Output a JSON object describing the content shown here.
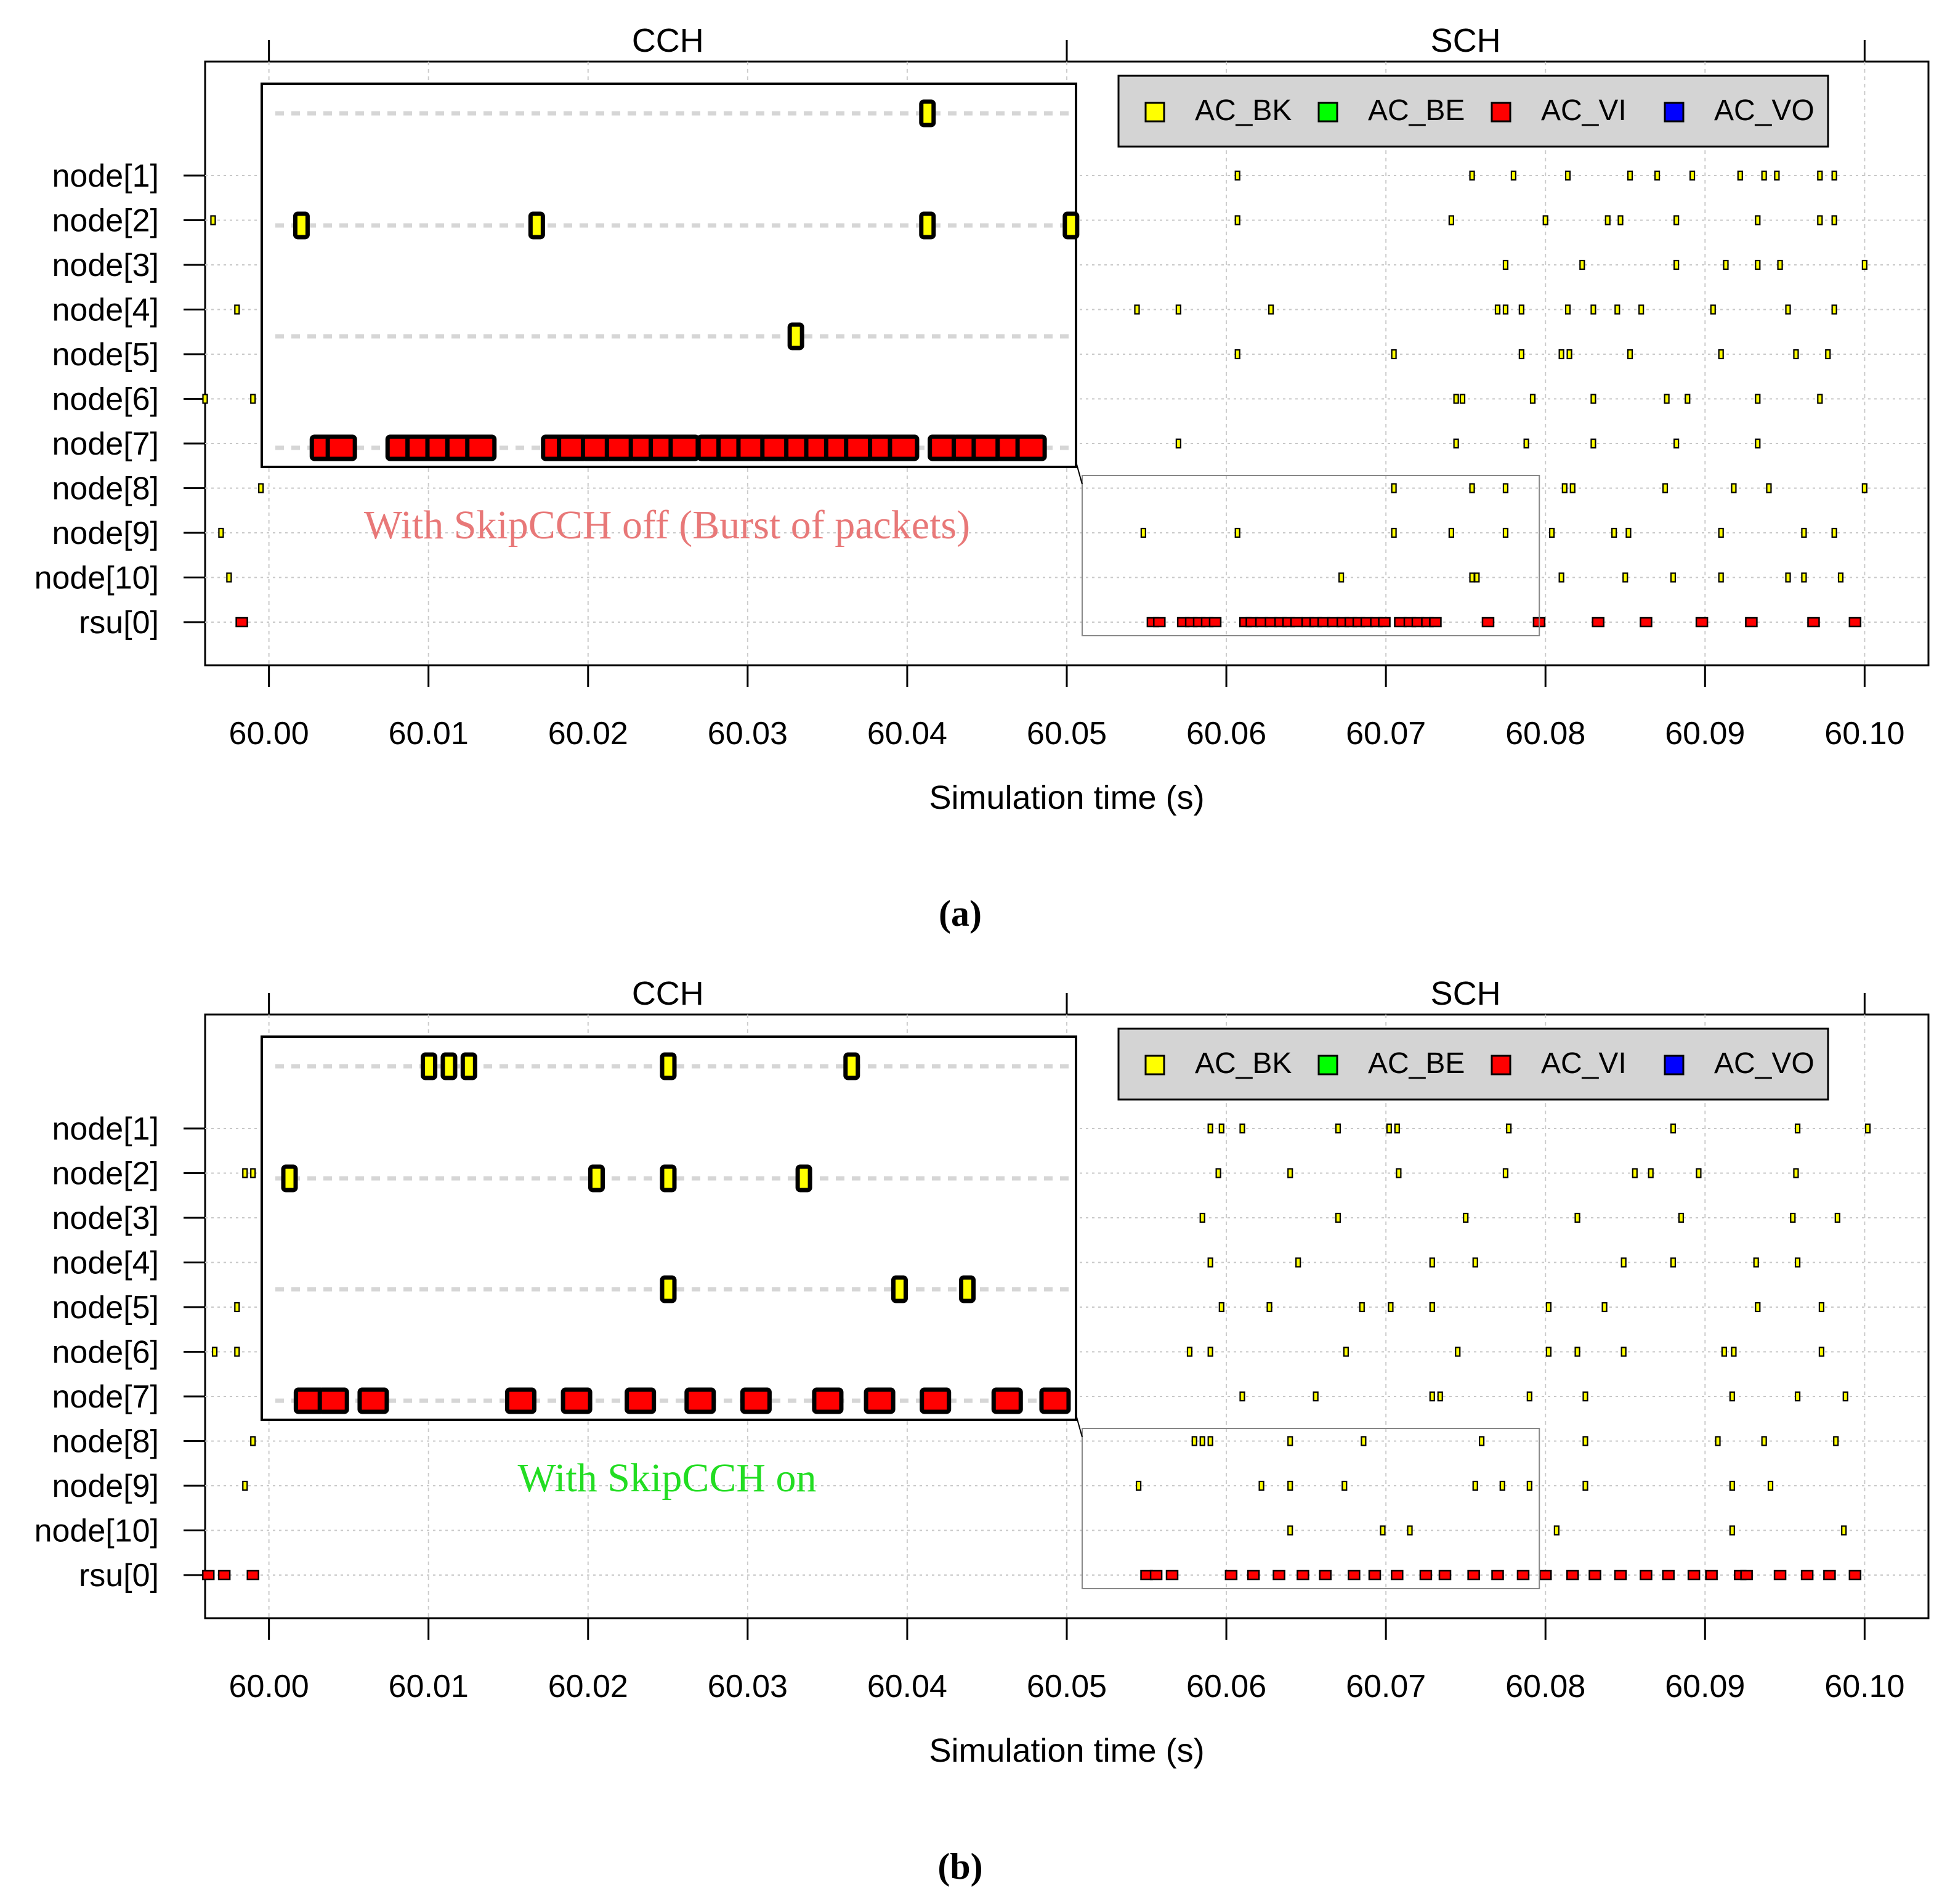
{
  "chart_data": [
    {
      "type": "scatter",
      "panel_label": "(a)",
      "xlabel": "Simulation time (s)",
      "x_ticks": [
        "60.00",
        "60.01",
        "60.02",
        "60.03",
        "60.04",
        "60.05",
        "60.06",
        "60.07",
        "60.08",
        "60.09",
        "60.10"
      ],
      "xlim": [
        59.996,
        60.104
      ],
      "categories": [
        "node[1]",
        "node[2]",
        "node[3]",
        "node[4]",
        "node[5]",
        "node[6]",
        "node[7]",
        "node[8]",
        "node[9]",
        "node[10]",
        "rsu[0]"
      ],
      "channels": [
        {
          "label": "CCH",
          "x_range": [
            60.0,
            60.05
          ]
        },
        {
          "label": "SCH",
          "x_range": [
            60.05,
            60.1
          ]
        }
      ],
      "legend": {
        "position": "top-right",
        "entries": [
          {
            "label": "AC_BK",
            "color": "#ffff00"
          },
          {
            "label": "AC_BE",
            "color": "#00ff00"
          },
          {
            "label": "AC_VI",
            "color": "#ff0000"
          },
          {
            "label": "AC_VO",
            "color": "#0000ff"
          }
        ]
      },
      "series": [
        {
          "name": "AC_BK",
          "color": "#ffff00",
          "points": [
            {
              "node": "node[1]",
              "x": [
                60.0607,
                60.0754,
                60.078,
                60.0814,
                60.0853,
                60.087,
                60.0892,
                60.0922,
                60.0937,
                60.0945,
                60.0972,
                60.0981
              ]
            },
            {
              "node": "node[2]",
              "x": [
                59.9965,
                60.0607,
                60.0741,
                60.08,
                60.0839,
                60.0847,
                60.0882,
                60.0933,
                60.0972,
                60.0981
              ]
            },
            {
              "node": "node[3]",
              "x": [
                60.0775,
                60.0823,
                60.0882,
                60.0913,
                60.0933,
                60.0947,
                60.1
              ]
            },
            {
              "node": "node[4]",
              "x": [
                59.998,
                60.0544,
                60.057,
                60.0628,
                60.077,
                60.0775,
                60.0785,
                60.0814,
                60.083,
                60.0845,
                60.086,
                60.0905,
                60.0952,
                60.0981
              ]
            },
            {
              "node": "node[5]",
              "x": [
                60.0607,
                60.0705,
                60.0785,
                60.081,
                60.0815,
                60.0853,
                60.091,
                60.0957,
                60.0977
              ]
            },
            {
              "node": "node[6]",
              "x": [
                59.996,
                59.999,
                60.0744,
                60.0748,
                60.0792,
                60.083,
                60.0876,
                60.0889,
                60.0933,
                60.0972
              ]
            },
            {
              "node": "node[7]",
              "x": [
                60.057,
                60.0744,
                60.0788,
                60.083,
                60.0882,
                60.0933
              ]
            },
            {
              "node": "node[8]",
              "x": [
                59.9995,
                60.0705,
                60.0754,
                60.0775,
                60.0812,
                60.0817,
                60.0875,
                60.0918,
                60.094,
                60.1
              ]
            },
            {
              "node": "node[9]",
              "x": [
                59.997,
                60.0548,
                60.0607,
                60.0705,
                60.0741,
                60.0775,
                60.0804,
                60.0843,
                60.0852,
                60.091,
                60.0962,
                60.0981
              ]
            },
            {
              "node": "node[10]",
              "x": [
                59.9975,
                60.0672,
                60.0754,
                60.0757,
                60.081,
                60.085,
                60.088,
                60.091,
                60.0952,
                60.0962,
                60.0985
              ]
            }
          ]
        },
        {
          "name": "AC_VI",
          "color": "#ff0000",
          "points": [
            {
              "node": "rsu[0]",
              "x": [
                59.9983,
                60.0554,
                60.0558,
                60.0573,
                60.0578,
                60.0583,
                60.0588,
                60.0593,
                60.0612,
                60.0616,
                60.0622,
                60.0628,
                60.0634,
                60.0639,
                60.0644,
                60.0651,
                60.0656,
                60.0661,
                60.0667,
                60.0673,
                60.0678,
                60.0683,
                60.0688,
                60.0694,
                60.0699,
                60.0709,
                60.0715,
                60.072,
                60.0726,
                60.0731,
                60.0764,
                60.0796,
                60.0833,
                60.0863,
                60.0898,
                60.0929,
                60.0968,
                60.0994
              ]
            }
          ]
        }
      ],
      "inset": {
        "x_range": [
          60.05,
          60.08
        ],
        "rows": [
          "node[8]",
          "node[9]",
          "node[10]",
          "rsu[0]"
        ],
        "annotation": "With SkipCCH off (Burst of packets)",
        "annotation_color": "#e87878",
        "bk_points": [
          {
            "row": 0,
            "x": [
              60.0705
            ]
          },
          {
            "row": 1,
            "x": [
              60.0548,
              60.0607,
              60.0705,
              60.0741
            ]
          },
          {
            "row": 2,
            "x": [
              60.0672
            ]
          }
        ],
        "vi_x": [
          60.0554,
          60.0558,
          60.0573,
          60.0578,
          60.0583,
          60.0588,
          60.0593,
          60.0612,
          60.0616,
          60.0622,
          60.0628,
          60.0634,
          60.0639,
          60.0644,
          60.0651,
          60.0656,
          60.0661,
          60.0667,
          60.0673,
          60.0678,
          60.0683,
          60.0688,
          60.0694,
          60.0699,
          60.0709,
          60.0715,
          60.072,
          60.0726,
          60.0731
        ]
      }
    },
    {
      "type": "scatter",
      "panel_label": "(b)",
      "xlabel": "Simulation time (s)",
      "x_ticks": [
        "60.00",
        "60.01",
        "60.02",
        "60.03",
        "60.04",
        "60.05",
        "60.06",
        "60.07",
        "60.08",
        "60.09",
        "60.10"
      ],
      "xlim": [
        59.996,
        60.104
      ],
      "categories": [
        "node[1]",
        "node[2]",
        "node[3]",
        "node[4]",
        "node[5]",
        "node[6]",
        "node[7]",
        "node[8]",
        "node[9]",
        "node[10]",
        "rsu[0]"
      ],
      "channels": [
        {
          "label": "CCH",
          "x_range": [
            60.0,
            60.05
          ]
        },
        {
          "label": "SCH",
          "x_range": [
            60.05,
            60.1
          ]
        }
      ],
      "legend": {
        "position": "top-right",
        "entries": [
          {
            "label": "AC_BK",
            "color": "#ffff00"
          },
          {
            "label": "AC_BE",
            "color": "#00ff00"
          },
          {
            "label": "AC_VI",
            "color": "#ff0000"
          },
          {
            "label": "AC_VO",
            "color": "#0000ff"
          }
        ]
      },
      "series": [
        {
          "name": "AC_BK",
          "color": "#ffff00",
          "points": [
            {
              "node": "node[1]",
              "x": [
                60.059,
                60.0597,
                60.061,
                60.067,
                60.0702,
                60.0707,
                60.0777,
                60.088,
                60.0958,
                60.1002
              ]
            },
            {
              "node": "node[2]",
              "x": [
                59.9985,
                59.999,
                60.0595,
                60.064,
                60.0708,
                60.0775,
                60.0856,
                60.0866,
                60.0896,
                60.0957
              ]
            },
            {
              "node": "node[3]",
              "x": [
                60.0585,
                60.067,
                60.075,
                60.082,
                60.0885,
                60.0955,
                60.0983
              ]
            },
            {
              "node": "node[4]",
              "x": [
                60.059,
                60.0645,
                60.0729,
                60.0756,
                60.0849,
                60.088,
                60.0932,
                60.0958
              ]
            },
            {
              "node": "node[5]",
              "x": [
                59.998,
                60.0597,
                60.0627,
                60.0685,
                60.0703,
                60.0729,
                60.0802,
                60.0837,
                60.0933,
                60.0973
              ]
            },
            {
              "node": "node[6]",
              "x": [
                59.9966,
                59.998,
                60.0577,
                60.059,
                60.0675,
                60.0745,
                60.0802,
                60.082,
                60.0849,
                60.0912,
                60.0918,
                60.0973
              ]
            },
            {
              "node": "node[7]",
              "x": [
                60.061,
                60.0656,
                60.0729,
                60.0734,
                60.079,
                60.0825,
                60.0917,
                60.0958,
                60.0988
              ]
            },
            {
              "node": "node[8]",
              "x": [
                59.999,
                60.058,
                60.0585,
                60.059,
                60.064,
                60.0686,
                60.076,
                60.0825,
                60.0908,
                60.0937,
                60.0982
              ]
            },
            {
              "node": "node[9]",
              "x": [
                59.9985,
                60.0545,
                60.0622,
                60.064,
                60.0674,
                60.0756,
                60.0773,
                60.079,
                60.0825,
                60.0917,
                60.0941
              ]
            },
            {
              "node": "node[10]",
              "x": [
                60.064,
                60.0698,
                60.0715,
                60.0807,
                60.0917,
                60.0987
              ]
            }
          ]
        },
        {
          "name": "AC_VI",
          "color": "#ff0000",
          "points": [
            {
              "node": "rsu[0]",
              "x": [
                59.9962,
                59.9972,
                59.999,
                60.055,
                60.0556,
                60.0566,
                60.0603,
                60.0617,
                60.0633,
                60.0648,
                60.0662,
                60.068,
                60.0693,
                60.0707,
                60.0725,
                60.0737,
                60.0755,
                60.077,
                60.0786,
                60.08,
                60.0817,
                60.0831,
                60.0847,
                60.0863,
                60.0877,
                60.0893,
                60.0904,
                60.0922,
                60.0926,
                60.0947,
                60.0964,
                60.0978,
                60.0994
              ]
            }
          ]
        }
      ],
      "inset": {
        "x_range": [
          60.05,
          60.08
        ],
        "rows": [
          "node[8]",
          "node[9]",
          "node[10]",
          "rsu[0]"
        ],
        "annotation": "With SkipCCH on",
        "annotation_color": "#22dd22",
        "bk_points": [
          {
            "row": 0,
            "x": [
              60.058,
              60.0585,
              60.059,
              60.064,
              60.0686
            ]
          },
          {
            "row": 1,
            "x": [
              60.0545,
              60.0622,
              60.064,
              60.0674
            ]
          },
          {
            "row": 2,
            "x": [
              60.064,
              60.0698,
              60.0715
            ]
          }
        ],
        "vi_x": [
          60.055,
          60.0556,
          60.0566,
          60.0603,
          60.0617,
          60.0633,
          60.0648,
          60.0662,
          60.068,
          60.0693,
          60.0707,
          60.0725,
          60.0737
        ]
      }
    }
  ]
}
